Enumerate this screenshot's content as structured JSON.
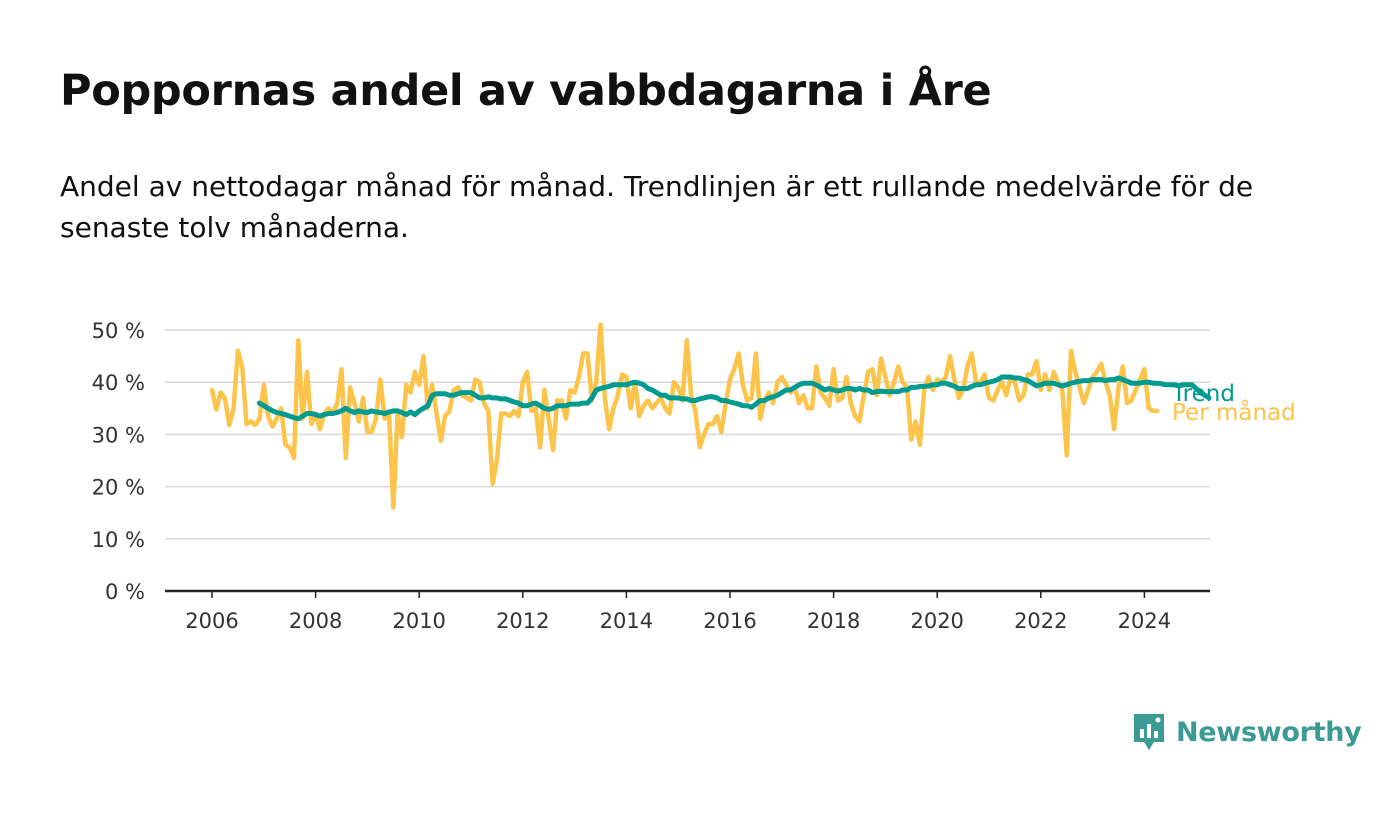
{
  "title": "Poppornas andel av vabbdagarna i Åre",
  "subtitle": "Andel av nettodagar månad för månad. Trendlinjen är ett rullande medelvärde för de senaste tolv månaderna.",
  "brand": {
    "name": "Newsworthy",
    "color": "#3c9a94"
  },
  "colors": {
    "monthly": "#fcc44a",
    "trend": "#009a8e",
    "grid": "#d9d9d9",
    "axis": "#222222"
  },
  "chart_data": {
    "type": "line",
    "title": "Poppornas andel av vabbdagarna i Åre",
    "xlabel": "",
    "ylabel": "",
    "x_start": 2006.0,
    "x_step": 0.08333,
    "xlim": [
      2005.0,
      2025.3
    ],
    "ylim": [
      0,
      50
    ],
    "x_ticks": [
      2006,
      2008,
      2010,
      2012,
      2014,
      2016,
      2018,
      2020,
      2022,
      2024
    ],
    "x_tick_labels": [
      "2006",
      "2008",
      "2010",
      "2012",
      "2014",
      "2016",
      "2018",
      "2020",
      "2022",
      "2024"
    ],
    "y_ticks": [
      0,
      10,
      20,
      30,
      40,
      50
    ],
    "y_tick_labels": [
      "0 %",
      "10 %",
      "20 %",
      "30 %",
      "40 %",
      "50 %"
    ],
    "grid": true,
    "series": [
      {
        "name": "Per månad",
        "start": 2006.0,
        "values": [
          38.5,
          34.8,
          38.0,
          37.0,
          31.8,
          35.0,
          46.0,
          43.0,
          32.0,
          32.5,
          31.8,
          33.0,
          39.5,
          33.5,
          31.5,
          33.0,
          35.0,
          28.0,
          27.5,
          25.5,
          48.0,
          33.0,
          42.0,
          32.0,
          34.0,
          31.0,
          34.0,
          35.0,
          34.0,
          36.0,
          42.5,
          25.5,
          39.0,
          36.0,
          32.5,
          37.0,
          30.5,
          30.5,
          33.0,
          40.5,
          33.0,
          34.0,
          16.0,
          34.0,
          29.5,
          39.5,
          38.0,
          42.0,
          39.5,
          45.0,
          35.0,
          39.5,
          34.0,
          28.8,
          33.5,
          34.5,
          38.5,
          39.0,
          37.5,
          37.0,
          36.5,
          40.5,
          40.0,
          36.0,
          34.5,
          20.5,
          25.0,
          34.0,
          34.0,
          33.5,
          34.5,
          33.5,
          40.0,
          42.0,
          34.5,
          35.0,
          27.5,
          38.5,
          33.0,
          27.0,
          36.5,
          36.5,
          33.0,
          38.5,
          38.0,
          41.0,
          45.5,
          45.5,
          36.5,
          40.0,
          51.0,
          37.0,
          31.0,
          35.0,
          37.5,
          41.5,
          41.0,
          35.0,
          40.0,
          33.5,
          35.5,
          36.5,
          35.0,
          36.0,
          37.0,
          35.0,
          34.0,
          40.0,
          39.0,
          36.5,
          48.0,
          37.5,
          34.5,
          27.5,
          30.0,
          32.0,
          32.0,
          33.5,
          30.5,
          36.0,
          40.5,
          42.5,
          45.5,
          39.5,
          36.5,
          37.0,
          45.5,
          33.0,
          36.5,
          38.0,
          36.0,
          40.0,
          41.0,
          39.5,
          38.0,
          39.0,
          36.0,
          37.5,
          35.0,
          35.0,
          43.0,
          38.0,
          37.0,
          35.5,
          42.5,
          36.5,
          37.0,
          41.0,
          36.0,
          33.5,
          32.5,
          37.5,
          42.0,
          42.5,
          37.5,
          44.5,
          41.0,
          37.5,
          40.0,
          43.0,
          40.0,
          39.0,
          29.0,
          32.5,
          28.0,
          38.5,
          41.0,
          38.5,
          40.5,
          40.0,
          41.0,
          45.0,
          40.5,
          37.0,
          38.5,
          43.0,
          45.5,
          40.0,
          40.0,
          41.5,
          37.0,
          36.5,
          38.5,
          40.0,
          37.5,
          41.0,
          40.0,
          36.5,
          37.5,
          41.5,
          41.5,
          44.0,
          38.5,
          41.5,
          38.5,
          42.0,
          40.0,
          38.5,
          26.0,
          46.0,
          42.0,
          39.0,
          36.0,
          38.5,
          41.0,
          42.0,
          43.5,
          40.0,
          37.5,
          31.0,
          39.0,
          43.0,
          36.0,
          36.5,
          38.5,
          40.5,
          42.5,
          35.0,
          34.5,
          34.5
        ]
      },
      {
        "name": "Trend",
        "start": 2006.917,
        "values": [
          36.0,
          35.5,
          35.0,
          34.5,
          34.2,
          34.0,
          33.8,
          33.5,
          33.2,
          33.0,
          33.5,
          34.0,
          34.0,
          33.8,
          33.5,
          33.8,
          34.0,
          34.0,
          34.2,
          34.5,
          35.0,
          34.5,
          34.2,
          34.5,
          34.3,
          34.2,
          34.5,
          34.3,
          34.2,
          34.0,
          34.3,
          34.5,
          34.5,
          34.2,
          33.8,
          34.3,
          33.8,
          34.5,
          35.0,
          35.5,
          37.5,
          37.8,
          37.8,
          37.8,
          37.5,
          37.5,
          37.8,
          38.0,
          38.0,
          38.0,
          37.5,
          37.0,
          37.0,
          37.2,
          37.0,
          37.0,
          36.8,
          36.8,
          36.5,
          36.2,
          36.0,
          35.5,
          35.5,
          35.8,
          36.0,
          35.5,
          35.0,
          34.8,
          35.0,
          35.5,
          35.5,
          35.5,
          35.8,
          35.8,
          35.8,
          36.0,
          36.0,
          37.0,
          38.5,
          38.8,
          39.0,
          39.2,
          39.5,
          39.5,
          39.5,
          39.5,
          39.8,
          40.0,
          39.8,
          39.5,
          38.8,
          38.5,
          38.0,
          37.5,
          37.5,
          37.0,
          37.0,
          37.0,
          36.8,
          36.8,
          36.5,
          36.5,
          36.8,
          37.0,
          37.2,
          37.2,
          37.0,
          36.5,
          36.5,
          36.2,
          36.0,
          35.8,
          35.5,
          35.5,
          35.2,
          35.8,
          36.5,
          36.5,
          37.0,
          37.2,
          37.5,
          38.0,
          38.5,
          38.5,
          39.0,
          39.5,
          39.8,
          39.8,
          39.8,
          39.5,
          39.0,
          38.5,
          38.8,
          38.5,
          38.3,
          38.5,
          38.8,
          38.8,
          38.5,
          38.8,
          38.5,
          38.5,
          38.0,
          38.2,
          38.3,
          38.2,
          38.2,
          38.2,
          38.2,
          38.5,
          38.5,
          39.0,
          39.0,
          39.2,
          39.2,
          39.3,
          39.5,
          39.5,
          39.8,
          39.8,
          39.5,
          39.2,
          38.8,
          38.8,
          38.8,
          39.2,
          39.5,
          39.5,
          39.8,
          40.0,
          40.2,
          40.5,
          41.0,
          41.0,
          41.0,
          40.8,
          40.8,
          40.5,
          40.3,
          39.8,
          39.3,
          39.5,
          39.8,
          39.8,
          39.8,
          39.5,
          39.3,
          39.5,
          39.8,
          40.0,
          40.2,
          40.3,
          40.3,
          40.5,
          40.5,
          40.5,
          40.3,
          40.5,
          40.5,
          40.8,
          40.5,
          40.2,
          39.8,
          39.8,
          39.8,
          40.0,
          40.0,
          39.8,
          39.8,
          39.7,
          39.5,
          39.5,
          39.5,
          39.3,
          39.5,
          39.5,
          39.5,
          38.8,
          38.0,
          37.5,
          37.0
        ]
      }
    ],
    "legend": "right-end labels"
  }
}
